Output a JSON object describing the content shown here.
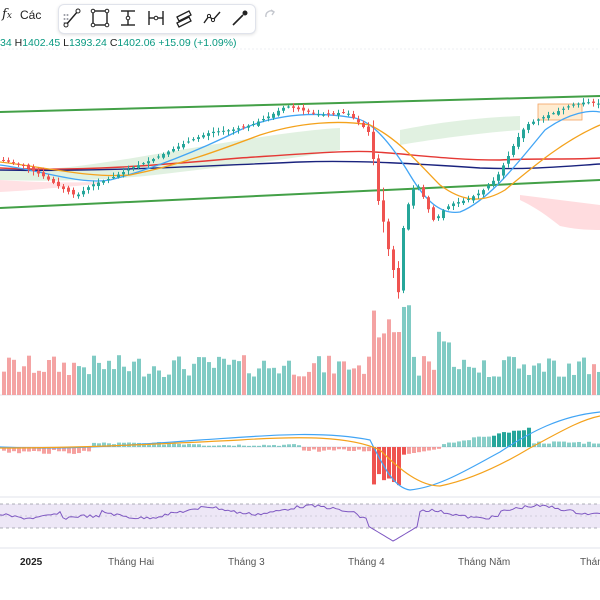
{
  "toolbar": {
    "fx_icon": "fx-icon",
    "indicators_label": "Các",
    "tools": [
      "trend-line-icon",
      "rectangle-icon",
      "fib-retracement-icon",
      "long-position-icon",
      "parallel-channel-icon",
      "path-icon",
      "brush-icon"
    ],
    "redo_icon": "redo-icon"
  },
  "legend": {
    "open_value": "34",
    "high_key": "H",
    "high_value": "1402.45",
    "low_key": "L",
    "low_value": "1393.24",
    "close_key": "C",
    "close_value": "1402.06",
    "change": "+15.09 (+1.09%)"
  },
  "x_axis": {
    "labels": [
      "2025",
      "Tháng Hai",
      "Tháng 3",
      "Tháng 4",
      "Tháng Năm",
      "Tháng"
    ]
  },
  "colors": {
    "up": "#26a69a",
    "down": "#ef5350",
    "channel": "#43a047",
    "ma_red": "#e53935",
    "ma_navy": "#1a237e",
    "ma_blue": "#42a5f5",
    "ma_orange": "#f4a21c",
    "rsi_band": "#ede7f6",
    "rsi_line": "#7e57c2"
  },
  "chart_data": {
    "type": "candlestick",
    "ohlc_last": {
      "open": null,
      "high": 1402.45,
      "low": 1393.24,
      "close": 1402.06,
      "change": 15.09,
      "change_pct": 1.09
    },
    "x_labels": [
      "2025",
      "Tháng Hai",
      "Tháng 3",
      "Tháng 4",
      "Tháng Năm",
      "Tháng"
    ],
    "panes": [
      "price",
      "volume",
      "macd",
      "rsi"
    ]
  }
}
